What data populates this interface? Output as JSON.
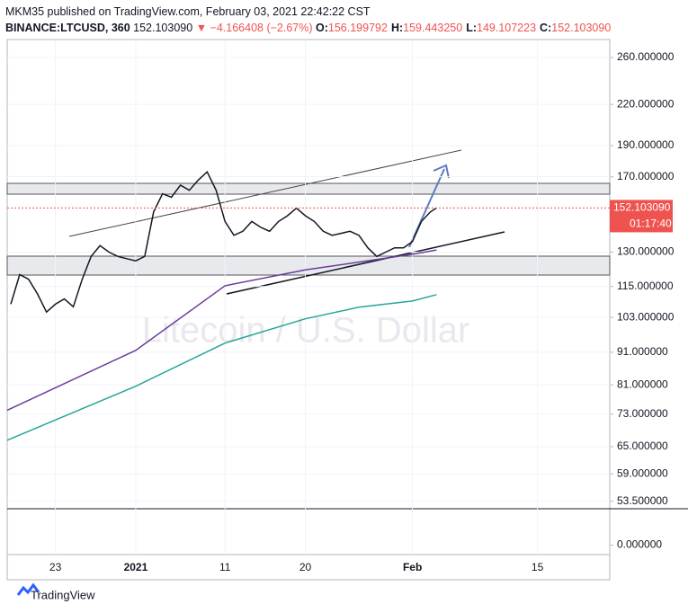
{
  "header": {
    "line1": "MKM35 published on TradingView.com, February 03, 2021 22:42:22 CST",
    "symbol": "BINANCE:LTCUSD, 360",
    "last": "152.103090",
    "change": "▼ −4.166408 (−2.67%)",
    "ohlc": [
      {
        "label": "O:",
        "value": "156.199792"
      },
      {
        "label": "H:",
        "value": "159.443250"
      },
      {
        "label": "L:",
        "value": "149.107223"
      },
      {
        "label": "C:",
        "value": "152.103090"
      }
    ]
  },
  "footer": {
    "brand": "TradingView"
  },
  "chart_data": [
    {
      "type": "line",
      "log_scale": true,
      "watermark": "Litecoin / U.S. Dollar",
      "xlim": [
        -14.4,
        53.1
      ],
      "ylim": [
        52.1,
        277.2
      ],
      "xticks": [
        {
          "value": -9,
          "label": "23"
        },
        {
          "value": 0,
          "label": "2021"
        },
        {
          "value": 10,
          "label": "11"
        },
        {
          "value": 19,
          "label": "20"
        },
        {
          "value": 31,
          "label": "Feb"
        },
        {
          "value": 45,
          "label": "15"
        }
      ],
      "yticks": [
        {
          "value": 260,
          "label": "260.000000"
        },
        {
          "value": 220,
          "label": "220.000000"
        },
        {
          "value": 190,
          "label": "190.000000"
        },
        {
          "value": 170,
          "label": "170.000000"
        },
        {
          "value": 130,
          "label": "130.000000"
        },
        {
          "value": 115,
          "label": "115.000000"
        },
        {
          "value": 103,
          "label": "103.000000"
        },
        {
          "value": 91,
          "label": "91.000000"
        },
        {
          "value": 81,
          "label": "81.000000"
        },
        {
          "value": 73,
          "label": "73.000000"
        },
        {
          "value": 65,
          "label": "65.000000"
        },
        {
          "value": 59,
          "label": "59.000000"
        },
        {
          "value": 53.5,
          "label": "53.500000"
        }
      ],
      "price_line": {
        "value": 152.10309,
        "label": "152.103090",
        "countdown": "01:17:40",
        "color": "#ef5350"
      },
      "series": [
        {
          "color": "#131722",
          "x": [
            -14,
            -13,
            -12,
            -11,
            -10,
            -9,
            -8,
            -7,
            -6,
            -5,
            -4,
            -3,
            -2,
            -1,
            0,
            1,
            2,
            3,
            4,
            5,
            6,
            7,
            8,
            9,
            10,
            11,
            12,
            13,
            14,
            15,
            16,
            17,
            18,
            19,
            20,
            21,
            22,
            23,
            24,
            25,
            26,
            27,
            28,
            29,
            30,
            31,
            32,
            33,
            33.7
          ],
          "values": [
            108,
            120,
            118,
            112,
            105,
            108,
            110,
            107,
            118,
            128,
            133,
            130,
            128,
            127,
            126,
            128,
            150,
            160,
            158,
            165,
            162,
            168,
            173,
            162,
            145,
            138,
            140,
            145,
            142,
            140,
            145,
            148,
            152,
            148,
            145,
            140,
            138,
            139,
            140,
            138,
            132,
            128,
            130,
            132,
            132,
            135,
            145,
            150,
            152.1
          ]
        },
        {
          "color": "#6a3d9a",
          "x": [
            -14.4,
            0,
            10,
            19,
            31,
            33.7
          ],
          "values": [
            74,
            91.6,
            115.3,
            122,
            129,
            131
          ]
        },
        {
          "color": "#26a69a",
          "x": [
            -14.4,
            0,
            10,
            19,
            25,
            31,
            33.7
          ],
          "values": [
            66.5,
            80.6,
            94,
            102.5,
            106.8,
            109.2,
            111.7
          ]
        }
      ]
    },
    {
      "type": "line",
      "ylim": [
        -1,
        1
      ],
      "yticks": [
        {
          "value": 0,
          "label": "0.000000"
        }
      ]
    }
  ]
}
